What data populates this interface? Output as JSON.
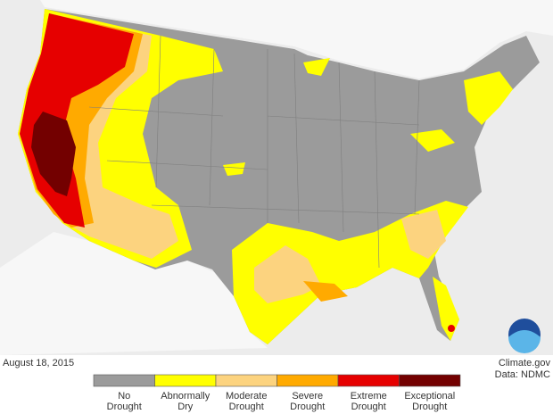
{
  "map": {
    "date": "August 18, 2015",
    "credit": "Climate.gov",
    "source": "Data: NDMC",
    "legend": [
      {
        "label_lines": [
          "No",
          "Drought"
        ],
        "color": "#9b9b9b"
      },
      {
        "label_lines": [
          "Abnormally",
          "Dry"
        ],
        "color": "#ffff00"
      },
      {
        "label_lines": [
          "Moderate",
          "Drought"
        ],
        "color": "#fcd37f"
      },
      {
        "label_lines": [
          "Severe",
          "Drought"
        ],
        "color": "#ffaa00"
      },
      {
        "label_lines": [
          "Extreme",
          "Drought"
        ],
        "color": "#e60000"
      },
      {
        "label_lines": [
          "Exceptional",
          "Drought"
        ],
        "color": "#730000"
      }
    ]
  }
}
